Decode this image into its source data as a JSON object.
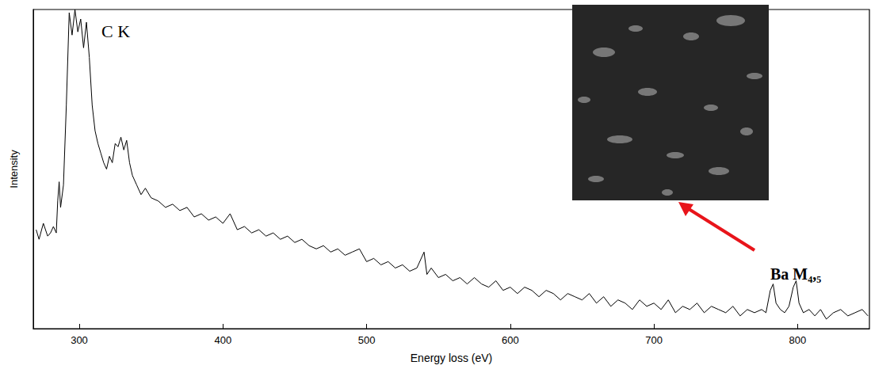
{
  "chart_data": {
    "type": "line",
    "x_label": "Energy loss (eV)",
    "y_label": "Intensity",
    "annotations": [
      "C K",
      "Ba M₄,₅"
    ],
    "color": "#000000",
    "xlim": [
      268,
      850
    ],
    "xticks": [
      300,
      400,
      500,
      600,
      700,
      800
    ],
    "ylim": [
      0,
      100
    ],
    "yticks": [],
    "grid": false,
    "tick_labels": "x",
    "x": [
      270,
      272,
      275,
      278,
      280,
      282,
      284,
      285,
      286,
      287,
      289,
      291,
      293,
      295,
      297,
      299,
      301,
      303,
      305,
      307,
      309,
      311,
      313,
      315,
      317,
      319,
      321,
      323,
      325,
      327,
      329,
      331,
      333,
      335,
      337,
      340,
      343,
      346,
      350,
      355,
      360,
      365,
      370,
      375,
      380,
      385,
      390,
      395,
      400,
      405,
      410,
      415,
      420,
      425,
      430,
      435,
      440,
      445,
      450,
      455,
      460,
      465,
      470,
      475,
      480,
      485,
      490,
      495,
      500,
      505,
      510,
      515,
      520,
      525,
      530,
      535,
      540,
      542,
      545,
      550,
      555,
      560,
      565,
      570,
      575,
      580,
      585,
      590,
      595,
      600,
      605,
      610,
      615,
      620,
      625,
      630,
      635,
      640,
      645,
      650,
      655,
      660,
      665,
      670,
      675,
      680,
      685,
      690,
      695,
      700,
      705,
      710,
      715,
      720,
      725,
      730,
      735,
      740,
      745,
      750,
      755,
      760,
      765,
      770,
      775,
      778,
      781,
      783,
      785,
      788,
      791,
      794,
      797,
      799,
      801,
      804,
      808,
      812,
      816,
      820,
      825,
      830,
      835,
      840,
      845,
      849
    ],
    "values": [
      31,
      28,
      33,
      29,
      30,
      32,
      30,
      40,
      46,
      38,
      45,
      70,
      99,
      92,
      100,
      93,
      97,
      88,
      96,
      85,
      70,
      62,
      58,
      55,
      52,
      50,
      54,
      52,
      58,
      57,
      60,
      56,
      59,
      52,
      48,
      45,
      42,
      44,
      41,
      40,
      38,
      39,
      37,
      38,
      35,
      36,
      34,
      35,
      33,
      36,
      31,
      32,
      30,
      31,
      29,
      30,
      28,
      29,
      27,
      28,
      26,
      25,
      26,
      24,
      25,
      23,
      24,
      25,
      21,
      22,
      20,
      21,
      19,
      20,
      18,
      19,
      24,
      17,
      19,
      16,
      17,
      15,
      16,
      14,
      16,
      14,
      13,
      15,
      12,
      13,
      11,
      13,
      12,
      10,
      12,
      11,
      9,
      11,
      10,
      9,
      11,
      8,
      10,
      7,
      9,
      8,
      6,
      9,
      7,
      8,
      6,
      9,
      5,
      7,
      6,
      8,
      5,
      7,
      6,
      5,
      7,
      4,
      6,
      5,
      6,
      5,
      12,
      14,
      8,
      6,
      5,
      7,
      13,
      15,
      8,
      5,
      6,
      4,
      6,
      3,
      5,
      6,
      4,
      5,
      6,
      4
    ]
  }
}
